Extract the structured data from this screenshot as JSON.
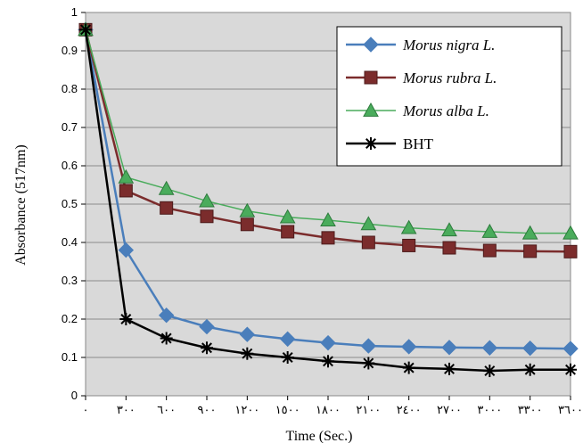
{
  "chart_data": {
    "type": "line",
    "xlabel": "Time (Sec.)",
    "ylabel": "Absorbance (517nm)",
    "x": [
      0,
      300,
      600,
      900,
      1200,
      1500,
      1800,
      2100,
      2400,
      2700,
      3000,
      3300,
      3600
    ],
    "x_tick_labels": [
      "٠",
      "٣٠٠",
      "٦٠٠",
      "٩٠٠",
      "١٢٠٠",
      "١٥٠٠",
      "١٨٠٠",
      "٢١٠٠",
      "٢٤٠٠",
      "٢٧٠٠",
      "٣٠٠٠",
      "٣٣٠٠",
      "٣٦٠٠"
    ],
    "y_ticks": [
      "0",
      "0.1",
      "0.2",
      "0.3",
      "0.4",
      "0.5",
      "0.6",
      "0.7",
      "0.8",
      "0.9",
      "1"
    ],
    "ylim": [
      0,
      1
    ],
    "grid": "horizontal",
    "legend_position": "top-right",
    "series": [
      {
        "name": "Morus nigra L.",
        "color": "#4a7ebb",
        "marker": "diamond",
        "values": [
          0.955,
          0.38,
          0.21,
          0.18,
          0.16,
          0.148,
          0.138,
          0.13,
          0.128,
          0.126,
          0.125,
          0.124,
          0.123
        ]
      },
      {
        "name": "Morus rubra L.",
        "color": "#7b2c2c",
        "marker": "square",
        "values": [
          0.955,
          0.535,
          0.49,
          0.468,
          0.447,
          0.428,
          0.412,
          0.4,
          0.392,
          0.386,
          0.379,
          0.377,
          0.376
        ]
      },
      {
        "name": "Morus alba L.",
        "color": "#4aac5c",
        "marker": "triangle",
        "values": [
          0.955,
          0.57,
          0.54,
          0.508,
          0.482,
          0.466,
          0.458,
          0.448,
          0.438,
          0.432,
          0.428,
          0.424,
          0.424
        ]
      },
      {
        "name": "BHT",
        "color": "#000000",
        "marker": "star",
        "values": [
          0.955,
          0.2,
          0.15,
          0.125,
          0.11,
          0.1,
          0.09,
          0.085,
          0.073,
          0.07,
          0.065,
          0.068,
          0.068
        ]
      }
    ]
  }
}
